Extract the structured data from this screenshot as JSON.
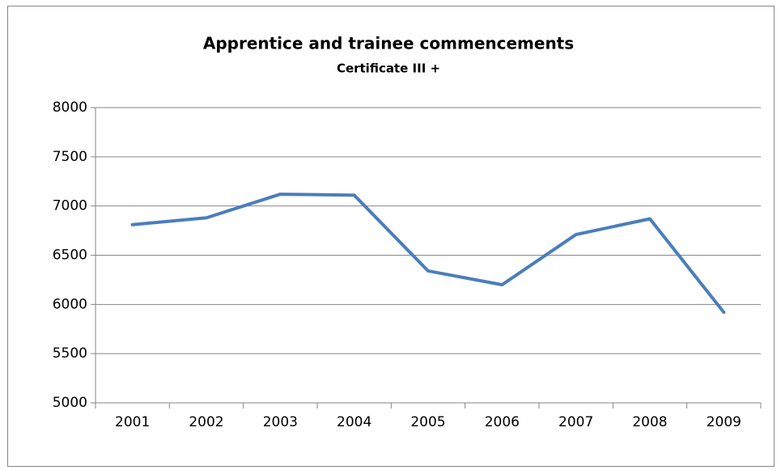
{
  "chart_data": {
    "type": "line",
    "title": "Apprentice and trainee commencements",
    "subtitle": "Certificate III +",
    "categories": [
      "2001",
      "2002",
      "2003",
      "2004",
      "2005",
      "2006",
      "2007",
      "2008",
      "2009"
    ],
    "series": [
      {
        "name": "Commencements",
        "color": "#4a7ebb",
        "values": [
          6810,
          6880,
          7120,
          7110,
          6340,
          6200,
          6710,
          6870,
          5920
        ]
      }
    ],
    "ylim": [
      5000,
      8000
    ],
    "yticks": [
      5000,
      5500,
      6000,
      6500,
      7000,
      7500,
      8000
    ],
    "grid": true,
    "legend": false
  }
}
